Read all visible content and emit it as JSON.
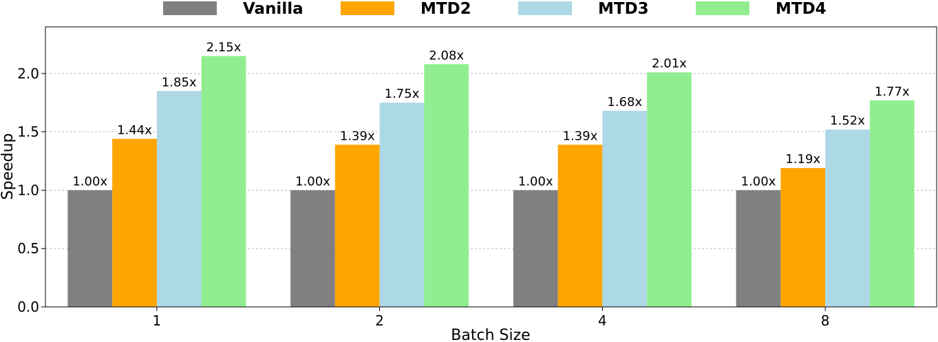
{
  "chart_data": {
    "type": "bar",
    "title": "",
    "xlabel": "Batch Size",
    "ylabel": "Speedup",
    "categories": [
      "1",
      "2",
      "4",
      "8"
    ],
    "series": [
      {
        "name": "Vanilla",
        "color": "#808080",
        "values": [
          1.0,
          1.0,
          1.0,
          1.0
        ],
        "labels": [
          "1.00x",
          "1.00x",
          "1.00x",
          "1.00x"
        ]
      },
      {
        "name": "MTD2",
        "color": "#ffa500",
        "values": [
          1.44,
          1.39,
          1.39,
          1.19
        ],
        "labels": [
          "1.44x",
          "1.39x",
          "1.39x",
          "1.19x"
        ]
      },
      {
        "name": "MTD3",
        "color": "#add8e6",
        "values": [
          1.85,
          1.75,
          1.68,
          1.52
        ],
        "labels": [
          "1.85x",
          "1.75x",
          "1.68x",
          "1.52x"
        ]
      },
      {
        "name": "MTD4",
        "color": "#90ee90",
        "values": [
          2.15,
          2.08,
          2.01,
          1.77
        ],
        "labels": [
          "2.15x",
          "2.08x",
          "2.01x",
          "1.77x"
        ]
      }
    ],
    "ylim": [
      0,
      2.4
    ],
    "yticks": [
      0.0,
      0.5,
      1.0,
      1.5,
      2.0
    ],
    "ytick_labels": [
      "0.0",
      "0.5",
      "1.0",
      "1.5",
      "2.0"
    ],
    "grid": "y",
    "legend_position": "top-center"
  }
}
